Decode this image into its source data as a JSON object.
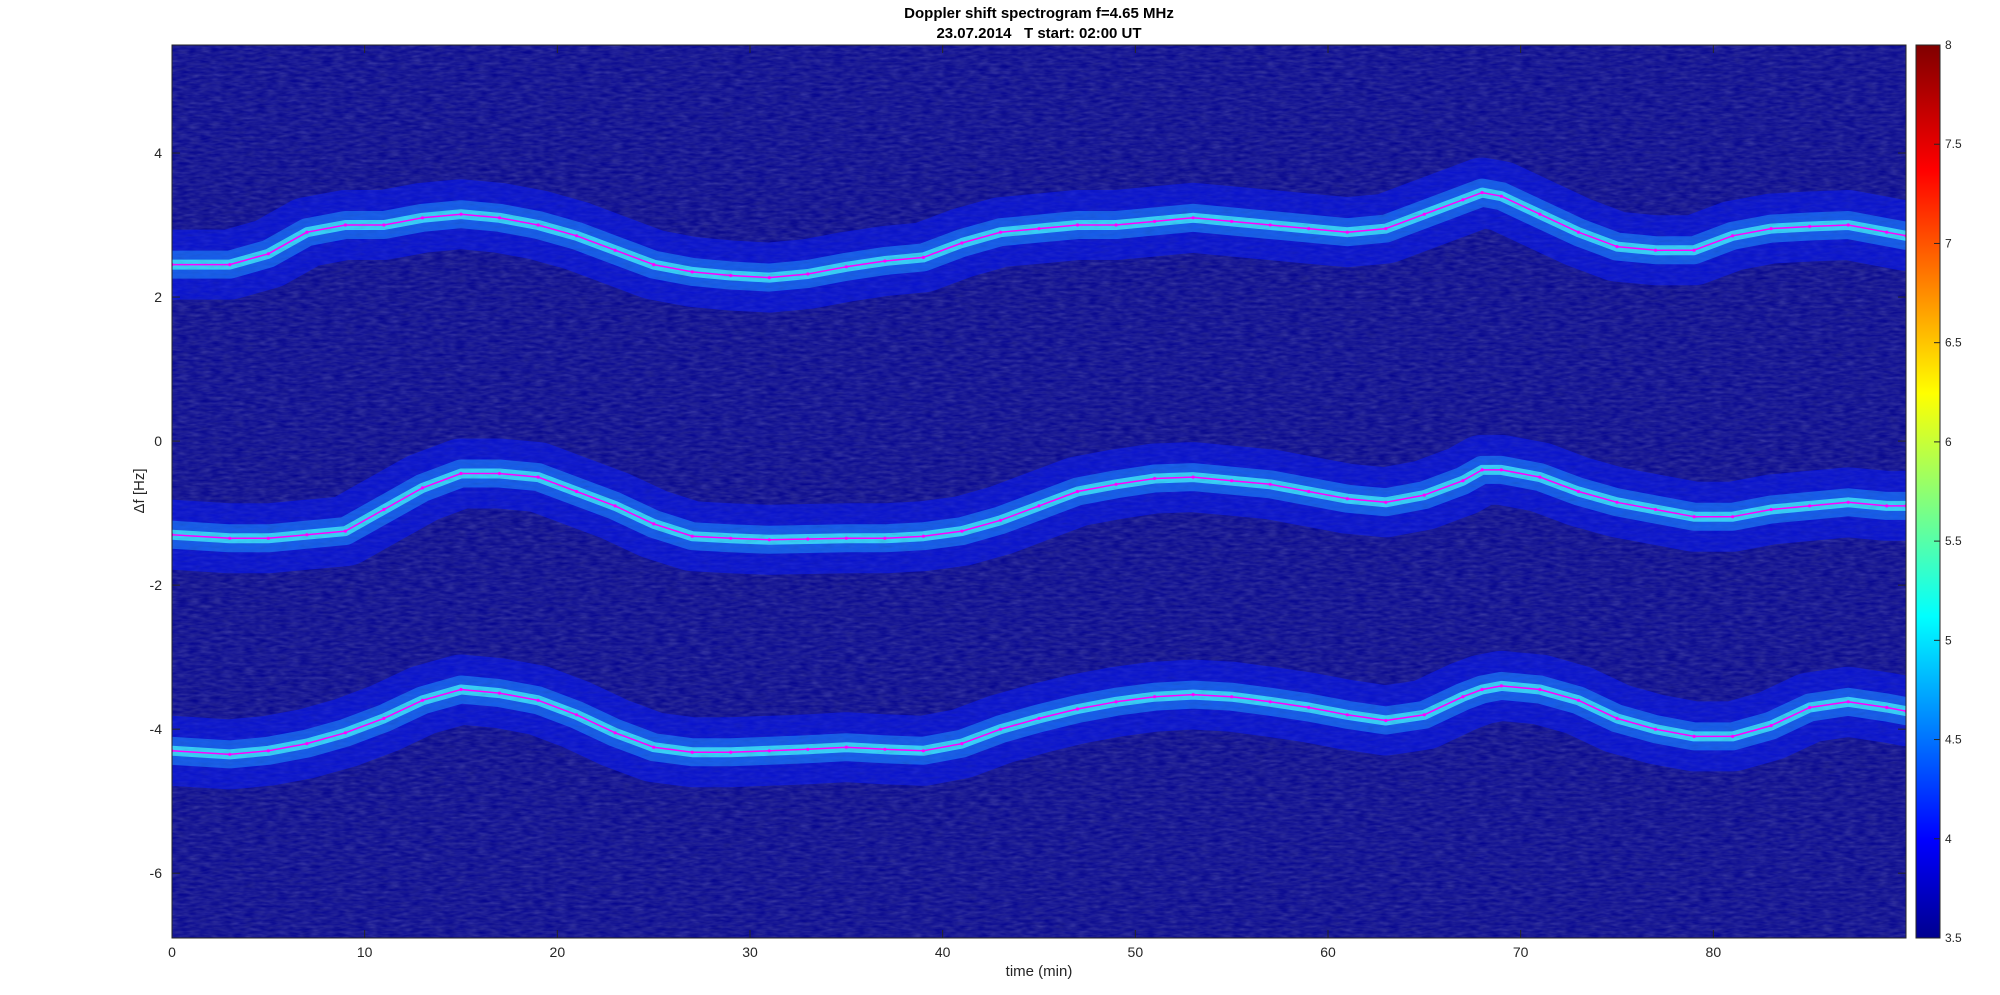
{
  "chart_data": {
    "type": "heatmap",
    "title": "Doppler shift spectrogram f=4.65 MHz",
    "subtitle": "23.07.2014   T start: 02:00 UT",
    "xlabel": "time (min)",
    "ylabel": "Δf [Hz]",
    "xlim": [
      0,
      90
    ],
    "ylim": [
      -6.9,
      5.5
    ],
    "x_ticks": [
      0,
      10,
      20,
      30,
      40,
      50,
      60,
      70,
      80
    ],
    "y_ticks": [
      4,
      2,
      0,
      -2,
      -4,
      -6
    ],
    "grid": false,
    "colorbar": {
      "colormap": "jet",
      "range": [
        3.5,
        8
      ],
      "ticks": [
        "8",
        "7.5",
        "7",
        "6.5",
        "6",
        "5.5",
        "5",
        "4.5",
        "4",
        "3.5"
      ],
      "placement": "right"
    },
    "colors": {
      "background": "#00008f",
      "trace_line": "#ff00ff",
      "secondary_line": "#000000"
    },
    "series": [
      {
        "x": [
          0,
          3,
          5,
          7,
          9,
          11,
          13,
          15,
          17,
          19,
          21,
          23,
          25,
          27,
          29,
          31,
          33,
          35,
          37,
          39,
          41,
          43,
          45,
          47,
          49,
          51,
          53,
          55,
          57,
          59,
          61,
          63,
          65,
          67,
          68,
          69,
          71,
          73,
          75,
          77,
          79,
          81,
          83,
          85,
          87,
          89,
          90
        ],
        "y": [
          2.45,
          2.45,
          2.6,
          2.9,
          3.0,
          3.0,
          3.1,
          3.15,
          3.1,
          3.0,
          2.85,
          2.65,
          2.45,
          2.35,
          2.3,
          2.27,
          2.32,
          2.42,
          2.5,
          2.55,
          2.75,
          2.9,
          2.95,
          3.0,
          3.0,
          3.05,
          3.1,
          3.05,
          3.0,
          2.95,
          2.9,
          2.95,
          3.15,
          3.35,
          3.45,
          3.4,
          3.15,
          2.9,
          2.7,
          2.65,
          2.65,
          2.85,
          2.95,
          2.98,
          3.0,
          2.9,
          2.85
        ]
      },
      {
        "x": [
          0,
          3,
          5,
          7,
          9,
          11,
          13,
          15,
          17,
          19,
          21,
          23,
          25,
          27,
          29,
          31,
          33,
          35,
          37,
          39,
          41,
          43,
          45,
          47,
          49,
          51,
          53,
          55,
          57,
          59,
          61,
          63,
          65,
          67,
          68,
          69,
          71,
          73,
          75,
          77,
          79,
          81,
          83,
          85,
          87,
          89,
          90
        ],
        "y": [
          -1.3,
          -1.35,
          -1.35,
          -1.3,
          -1.25,
          -0.95,
          -0.65,
          -0.45,
          -0.45,
          -0.5,
          -0.7,
          -0.9,
          -1.15,
          -1.32,
          -1.35,
          -1.37,
          -1.36,
          -1.35,
          -1.35,
          -1.32,
          -1.25,
          -1.1,
          -0.9,
          -0.7,
          -0.6,
          -0.52,
          -0.5,
          -0.55,
          -0.6,
          -0.7,
          -0.8,
          -0.85,
          -0.75,
          -0.55,
          -0.4,
          -0.4,
          -0.5,
          -0.7,
          -0.85,
          -0.95,
          -1.05,
          -1.05,
          -0.95,
          -0.9,
          -0.85,
          -0.9,
          -0.9
        ]
      },
      {
        "x": [
          0,
          3,
          5,
          7,
          9,
          11,
          13,
          15,
          17,
          19,
          21,
          23,
          25,
          27,
          29,
          31,
          33,
          35,
          37,
          39,
          41,
          43,
          45,
          47,
          49,
          51,
          53,
          55,
          57,
          59,
          61,
          63,
          65,
          67,
          68,
          69,
          71,
          73,
          75,
          77,
          79,
          81,
          83,
          85,
          87,
          89,
          90
        ],
        "y": [
          -4.3,
          -4.35,
          -4.3,
          -4.2,
          -4.05,
          -3.85,
          -3.6,
          -3.45,
          -3.5,
          -3.6,
          -3.8,
          -4.05,
          -4.25,
          -4.32,
          -4.32,
          -4.3,
          -4.28,
          -4.25,
          -4.28,
          -4.3,
          -4.2,
          -4.0,
          -3.85,
          -3.72,
          -3.62,
          -3.55,
          -3.52,
          -3.55,
          -3.62,
          -3.7,
          -3.8,
          -3.88,
          -3.8,
          -3.55,
          -3.45,
          -3.4,
          -3.45,
          -3.6,
          -3.85,
          -4.0,
          -4.1,
          -4.1,
          -3.95,
          -3.7,
          -3.62,
          -3.7,
          -3.75
        ]
      }
    ]
  }
}
